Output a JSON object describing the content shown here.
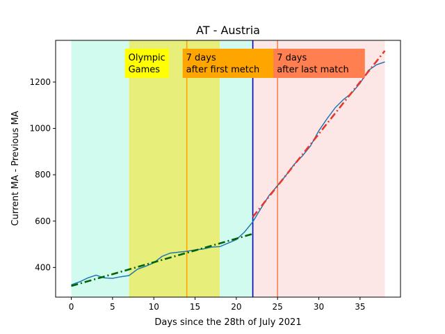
{
  "chart_data": {
    "type": "line",
    "title": "AT - Austria",
    "xlabel": "Days since the 28th of July 2021",
    "ylabel": "Current MA - Previous MA",
    "xlim": [
      -1.9,
      39.9
    ],
    "ylim": [
      272,
      1380
    ],
    "xticks": [
      0,
      5,
      10,
      15,
      20,
      25,
      30,
      35
    ],
    "yticks": [
      400,
      600,
      800,
      1000,
      1200
    ],
    "grid": false,
    "bands": [
      {
        "name": "pre-period",
        "x0": 0,
        "x1": 7,
        "color": "#d2fbef"
      },
      {
        "name": "olympic-games",
        "x0": 7,
        "x1": 18,
        "color": "#e8ee7a"
      },
      {
        "name": "between",
        "x0": 18,
        "x1": 22,
        "color": "#d2fbef"
      },
      {
        "name": "post-period",
        "x0": 22,
        "x1": 38,
        "color": "#fde6e6"
      }
    ],
    "vlines": [
      {
        "x": 14,
        "color": "#ffa500"
      },
      {
        "x": 22,
        "color": "#0000cd"
      },
      {
        "x": 25,
        "color": "#ff7f50"
      }
    ],
    "annotations": [
      {
        "lines": [
          "Olympic",
          "Games"
        ],
        "x": 7,
        "color": "#ffff00"
      },
      {
        "lines": [
          "7 days",
          "after first metch"
        ],
        "x": 14,
        "color": "#ffa500"
      },
      {
        "lines": [
          "7 days",
          "after last match"
        ],
        "x": 25,
        "color": "#ff7f50"
      }
    ],
    "series": [
      {
        "color": "#1f77b4",
        "style": "solid",
        "x": [
          0,
          1,
          2,
          3,
          4,
          5,
          6,
          7,
          8,
          9,
          10,
          11,
          12,
          13,
          14,
          15,
          16,
          17,
          18,
          19,
          20,
          21,
          22,
          23,
          24,
          25,
          26,
          27,
          28,
          29,
          30,
          31,
          32,
          33,
          34,
          35,
          36,
          37,
          38
        ],
        "y": [
          325,
          338,
          355,
          367,
          355,
          353,
          360,
          365,
          392,
          405,
          420,
          448,
          462,
          466,
          470,
          476,
          480,
          488,
          490,
          505,
          520,
          553,
          597,
          656,
          712,
          753,
          797,
          844,
          881,
          925,
          990,
          1042,
          1090,
          1125,
          1153,
          1195,
          1250,
          1275,
          1287
        ]
      },
      {
        "color": "#006400",
        "style": "dashdot",
        "x": [
          0,
          22
        ],
        "y": [
          320,
          545
        ]
      },
      {
        "color": "#e6372a",
        "style": "dashdot",
        "x": [
          22,
          38
        ],
        "y": [
          618,
          1335
        ]
      }
    ]
  }
}
